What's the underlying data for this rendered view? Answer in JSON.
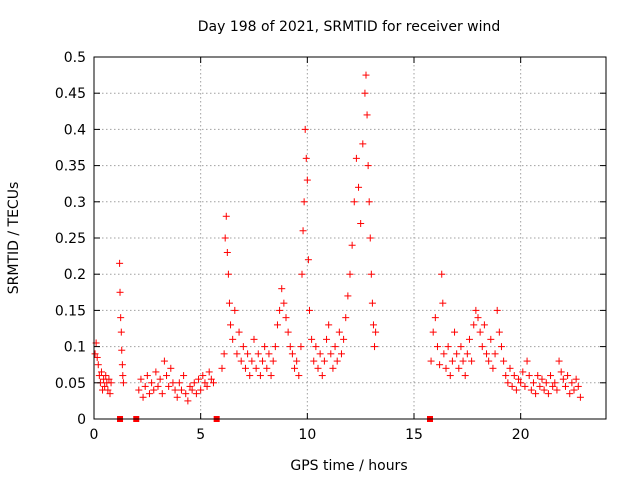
{
  "chart_data": {
    "type": "scatter",
    "title": "Day 198 of 2021, SRMTID for receiver wind",
    "xlabel": "GPS time / hours",
    "ylabel": "SRMTID / TECUs",
    "xlim": [
      0,
      24
    ],
    "ylim": [
      0,
      0.5
    ],
    "x_ticks": [
      0,
      5,
      10,
      15,
      20
    ],
    "y_ticks": [
      0,
      0.05,
      0.1,
      0.15,
      0.2,
      0.25,
      0.3,
      0.35,
      0.4,
      0.45,
      0.5
    ],
    "grid": true,
    "legend": "none",
    "marker": "+",
    "color": "#ff0000",
    "gap_markers_x": [
      1.22,
      1.98,
      5.75,
      15.75
    ],
    "series": [
      {
        "points": [
          [
            0.05,
            0.09
          ],
          [
            0.1,
            0.105
          ],
          [
            0.15,
            0.085
          ],
          [
            0.2,
            0.075
          ],
          [
            0.25,
            0.06
          ],
          [
            0.3,
            0.05
          ],
          [
            0.35,
            0.065
          ],
          [
            0.4,
            0.04
          ],
          [
            0.45,
            0.055
          ],
          [
            0.5,
            0.045
          ],
          [
            0.55,
            0.06
          ],
          [
            0.6,
            0.05
          ],
          [
            0.65,
            0.04
          ],
          [
            0.7,
            0.055
          ],
          [
            0.75,
            0.035
          ],
          [
            0.8,
            0.05
          ],
          [
            1.2,
            0.215
          ],
          [
            1.22,
            0.175
          ],
          [
            1.25,
            0.14
          ],
          [
            1.28,
            0.12
          ],
          [
            1.3,
            0.095
          ],
          [
            1.33,
            0.075
          ],
          [
            1.35,
            0.06
          ],
          [
            1.38,
            0.05
          ],
          [
            2.1,
            0.04
          ],
          [
            2.2,
            0.055
          ],
          [
            2.3,
            0.03
          ],
          [
            2.4,
            0.045
          ],
          [
            2.5,
            0.06
          ],
          [
            2.6,
            0.035
          ],
          [
            2.7,
            0.05
          ],
          [
            2.8,
            0.04
          ],
          [
            2.9,
            0.065
          ],
          [
            3.0,
            0.045
          ],
          [
            3.1,
            0.055
          ],
          [
            3.2,
            0.035
          ],
          [
            3.3,
            0.08
          ],
          [
            3.4,
            0.06
          ],
          [
            3.5,
            0.045
          ],
          [
            3.6,
            0.07
          ],
          [
            3.7,
            0.05
          ],
          [
            3.8,
            0.04
          ],
          [
            3.9,
            0.03
          ],
          [
            4.0,
            0.05
          ],
          [
            4.1,
            0.04
          ],
          [
            4.2,
            0.06
          ],
          [
            4.3,
            0.035
          ],
          [
            4.4,
            0.025
          ],
          [
            4.5,
            0.045
          ],
          [
            4.6,
            0.04
          ],
          [
            4.7,
            0.05
          ],
          [
            4.8,
            0.035
          ],
          [
            4.9,
            0.055
          ],
          [
            5.0,
            0.04
          ],
          [
            5.1,
            0.06
          ],
          [
            5.2,
            0.05
          ],
          [
            5.3,
            0.045
          ],
          [
            5.4,
            0.065
          ],
          [
            5.5,
            0.055
          ],
          [
            5.6,
            0.05
          ],
          [
            6.0,
            0.07
          ],
          [
            6.1,
            0.09
          ],
          [
            6.15,
            0.25
          ],
          [
            6.2,
            0.28
          ],
          [
            6.25,
            0.23
          ],
          [
            6.3,
            0.2
          ],
          [
            6.35,
            0.16
          ],
          [
            6.4,
            0.13
          ],
          [
            6.5,
            0.11
          ],
          [
            6.6,
            0.15
          ],
          [
            6.7,
            0.09
          ],
          [
            6.8,
            0.12
          ],
          [
            6.9,
            0.08
          ],
          [
            7.0,
            0.1
          ],
          [
            7.1,
            0.07
          ],
          [
            7.2,
            0.09
          ],
          [
            7.3,
            0.06
          ],
          [
            7.4,
            0.08
          ],
          [
            7.5,
            0.11
          ],
          [
            7.6,
            0.07
          ],
          [
            7.7,
            0.09
          ],
          [
            7.8,
            0.06
          ],
          [
            7.9,
            0.08
          ],
          [
            8.0,
            0.1
          ],
          [
            8.1,
            0.07
          ],
          [
            8.2,
            0.09
          ],
          [
            8.3,
            0.06
          ],
          [
            8.4,
            0.08
          ],
          [
            8.5,
            0.1
          ],
          [
            8.6,
            0.13
          ],
          [
            8.7,
            0.15
          ],
          [
            8.8,
            0.18
          ],
          [
            8.9,
            0.16
          ],
          [
            9.0,
            0.14
          ],
          [
            9.1,
            0.12
          ],
          [
            9.2,
            0.1
          ],
          [
            9.3,
            0.09
          ],
          [
            9.4,
            0.07
          ],
          [
            9.5,
            0.08
          ],
          [
            9.6,
            0.06
          ],
          [
            9.7,
            0.1
          ],
          [
            9.75,
            0.2
          ],
          [
            9.8,
            0.26
          ],
          [
            9.85,
            0.3
          ],
          [
            9.9,
            0.4
          ],
          [
            9.95,
            0.36
          ],
          [
            10.0,
            0.33
          ],
          [
            10.05,
            0.22
          ],
          [
            10.1,
            0.15
          ],
          [
            10.2,
            0.11
          ],
          [
            10.3,
            0.08
          ],
          [
            10.4,
            0.1
          ],
          [
            10.5,
            0.07
          ],
          [
            10.6,
            0.09
          ],
          [
            10.7,
            0.06
          ],
          [
            10.8,
            0.08
          ],
          [
            10.9,
            0.11
          ],
          [
            11.0,
            0.13
          ],
          [
            11.1,
            0.09
          ],
          [
            11.2,
            0.07
          ],
          [
            11.3,
            0.1
          ],
          [
            11.4,
            0.08
          ],
          [
            11.5,
            0.12
          ],
          [
            11.6,
            0.09
          ],
          [
            11.7,
            0.11
          ],
          [
            11.8,
            0.14
          ],
          [
            11.9,
            0.17
          ],
          [
            12.0,
            0.2
          ],
          [
            12.1,
            0.24
          ],
          [
            12.2,
            0.3
          ],
          [
            12.3,
            0.36
          ],
          [
            12.4,
            0.32
          ],
          [
            12.5,
            0.27
          ],
          [
            12.6,
            0.38
          ],
          [
            12.7,
            0.45
          ],
          [
            12.75,
            0.475
          ],
          [
            12.8,
            0.42
          ],
          [
            12.85,
            0.35
          ],
          [
            12.9,
            0.3
          ],
          [
            12.95,
            0.25
          ],
          [
            13.0,
            0.2
          ],
          [
            13.05,
            0.16
          ],
          [
            13.1,
            0.13
          ],
          [
            13.15,
            0.1
          ],
          [
            13.2,
            0.12
          ],
          [
            15.8,
            0.08
          ],
          [
            15.9,
            0.12
          ],
          [
            16.0,
            0.14
          ],
          [
            16.1,
            0.1
          ],
          [
            16.2,
            0.075
          ],
          [
            16.3,
            0.2
          ],
          [
            16.35,
            0.16
          ],
          [
            16.4,
            0.09
          ],
          [
            16.5,
            0.07
          ],
          [
            16.6,
            0.1
          ],
          [
            16.7,
            0.06
          ],
          [
            16.8,
            0.08
          ],
          [
            16.9,
            0.12
          ],
          [
            17.0,
            0.09
          ],
          [
            17.1,
            0.07
          ],
          [
            17.2,
            0.1
          ],
          [
            17.3,
            0.08
          ],
          [
            17.4,
            0.06
          ],
          [
            17.5,
            0.09
          ],
          [
            17.6,
            0.11
          ],
          [
            17.7,
            0.08
          ],
          [
            17.8,
            0.13
          ],
          [
            17.9,
            0.15
          ],
          [
            18.0,
            0.14
          ],
          [
            18.1,
            0.12
          ],
          [
            18.2,
            0.1
          ],
          [
            18.3,
            0.13
          ],
          [
            18.4,
            0.09
          ],
          [
            18.5,
            0.08
          ],
          [
            18.6,
            0.11
          ],
          [
            18.7,
            0.07
          ],
          [
            18.8,
            0.09
          ],
          [
            18.9,
            0.15
          ],
          [
            19.0,
            0.12
          ],
          [
            19.1,
            0.1
          ],
          [
            19.2,
            0.08
          ],
          [
            19.3,
            0.06
          ],
          [
            19.4,
            0.05
          ],
          [
            19.5,
            0.07
          ],
          [
            19.6,
            0.045
          ],
          [
            19.7,
            0.06
          ],
          [
            19.8,
            0.04
          ],
          [
            19.9,
            0.055
          ],
          [
            20.0,
            0.05
          ],
          [
            20.1,
            0.065
          ],
          [
            20.2,
            0.045
          ],
          [
            20.3,
            0.08
          ],
          [
            20.4,
            0.06
          ],
          [
            20.5,
            0.04
          ],
          [
            20.6,
            0.05
          ],
          [
            20.7,
            0.035
          ],
          [
            20.8,
            0.06
          ],
          [
            20.9,
            0.045
          ],
          [
            21.0,
            0.055
          ],
          [
            21.1,
            0.04
          ],
          [
            21.2,
            0.05
          ],
          [
            21.3,
            0.035
          ],
          [
            21.4,
            0.06
          ],
          [
            21.5,
            0.045
          ],
          [
            21.6,
            0.05
          ],
          [
            21.7,
            0.04
          ],
          [
            21.8,
            0.08
          ],
          [
            21.9,
            0.065
          ],
          [
            22.0,
            0.055
          ],
          [
            22.1,
            0.045
          ],
          [
            22.2,
            0.06
          ],
          [
            22.3,
            0.035
          ],
          [
            22.4,
            0.05
          ],
          [
            22.5,
            0.04
          ],
          [
            22.6,
            0.055
          ],
          [
            22.7,
            0.045
          ],
          [
            22.8,
            0.03
          ]
        ]
      }
    ]
  }
}
